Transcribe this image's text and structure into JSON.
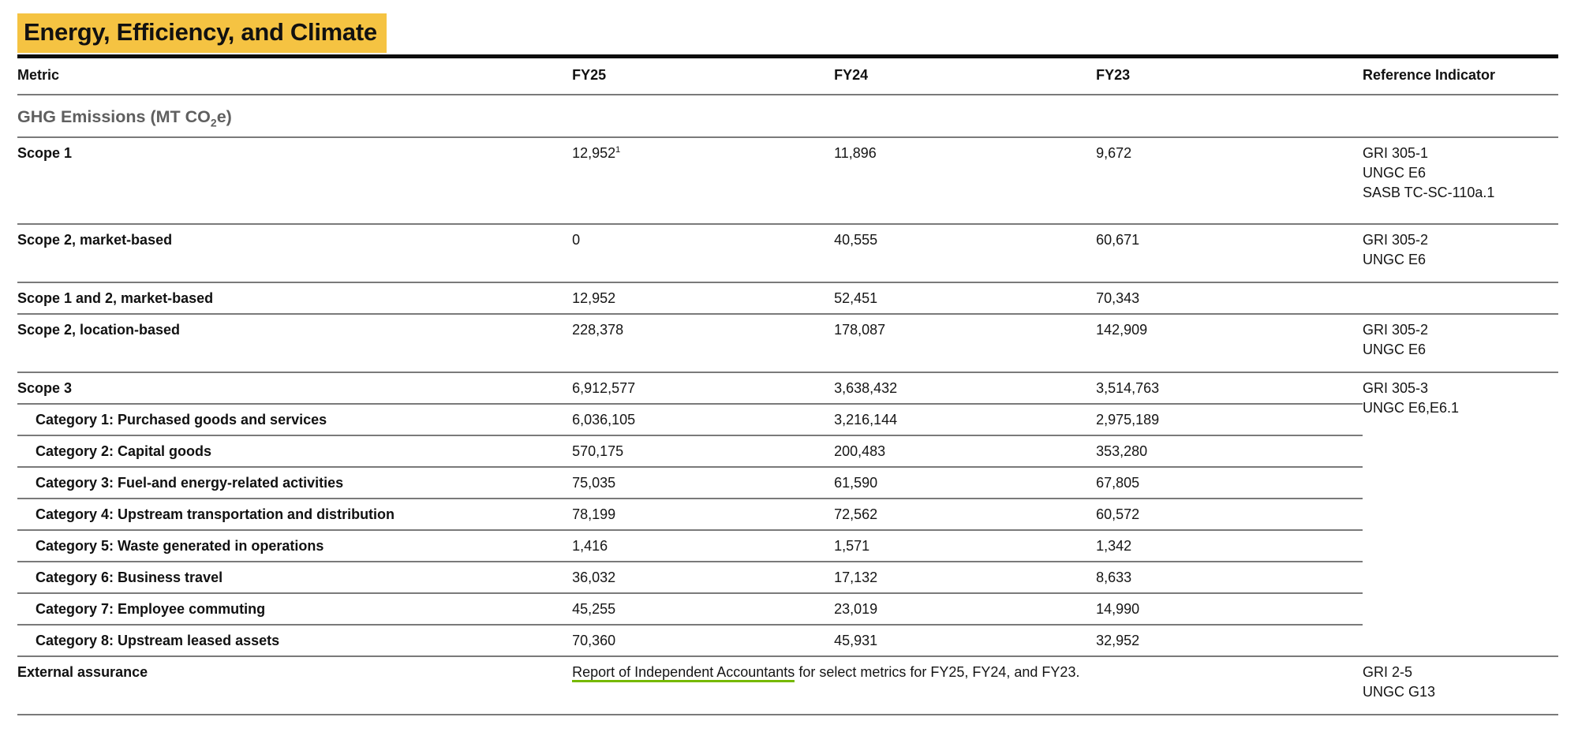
{
  "page": {
    "title": "Energy, Efficiency, and Climate"
  },
  "colors": {
    "title_highlight": "#F5C342",
    "link_underline_green": "#76B900",
    "section_header_gray": "#5F5F5F"
  },
  "table": {
    "columns": {
      "metric": "Metric",
      "fy25": "FY25",
      "fy24": "FY24",
      "fy23": "FY23",
      "reference": "Reference Indicator"
    },
    "section": {
      "prefix": "GHG Emissions (MT CO",
      "subscript": "2",
      "suffix": "e)"
    },
    "rows": [
      {
        "metric": "Scope 1",
        "fy25": "12,952",
        "fy25_footnote": "1",
        "fy24": "11,896",
        "fy23": "9,672",
        "ref": [
          "GRI 305-1",
          "UNGC E6",
          "SASB TC-SC-110a.1"
        ]
      },
      {
        "metric": "Scope 2, market-based",
        "fy25": "0",
        "fy24": "40,555",
        "fy23": "60,671",
        "ref": [
          "GRI 305-2",
          "UNGC E6"
        ]
      },
      {
        "metric": "Scope 1 and 2, market-based",
        "fy25": "12,952",
        "fy24": "52,451",
        "fy23": "70,343",
        "ref": []
      },
      {
        "metric": "Scope 2, location-based",
        "fy25": "228,378",
        "fy24": "178,087",
        "fy23": "142,909",
        "ref": [
          "GRI 305-2",
          "UNGC E6"
        ]
      },
      {
        "metric": "Scope 3",
        "fy25": "6,912,577",
        "fy24": "3,638,432",
        "fy23": "3,514,763",
        "ref": [
          "GRI 305-3",
          "UNGC E6,E6.1"
        ]
      },
      {
        "metric": "Category 1: Purchased goods and services",
        "fy25": "6,036,105",
        "fy24": "3,216,144",
        "fy23": "2,975,189"
      },
      {
        "metric": "Category 2: Capital goods",
        "fy25": "570,175",
        "fy24": "200,483",
        "fy23": "353,280"
      },
      {
        "metric": "Category 3: Fuel-and energy-related activities",
        "fy25": "75,035",
        "fy24": "61,590",
        "fy23": "67,805"
      },
      {
        "metric": "Category 4: Upstream transportation and distribution",
        "fy25": "78,199",
        "fy24": "72,562",
        "fy23": "60,572"
      },
      {
        "metric": "Category 5: Waste generated in operations",
        "fy25": "1,416",
        "fy24": "1,571",
        "fy23": "1,342"
      },
      {
        "metric": "Category 6: Business travel",
        "fy25": "36,032",
        "fy24": "17,132",
        "fy23": "8,633"
      },
      {
        "metric": "Category 7: Employee commuting",
        "fy25": "45,255",
        "fy24": "23,019",
        "fy23": "14,990"
      },
      {
        "metric": "Category 8: Upstream leased assets",
        "fy25": "70,360",
        "fy24": "45,931",
        "fy23": "32,952"
      }
    ],
    "external_assurance": {
      "metric": "External assurance",
      "link_text": "Report of Independent Accountants",
      "after_text": " for select metrics for FY25, FY24, and FY23.",
      "ref": [
        "GRI 2-5",
        "UNGC G13"
      ]
    }
  }
}
